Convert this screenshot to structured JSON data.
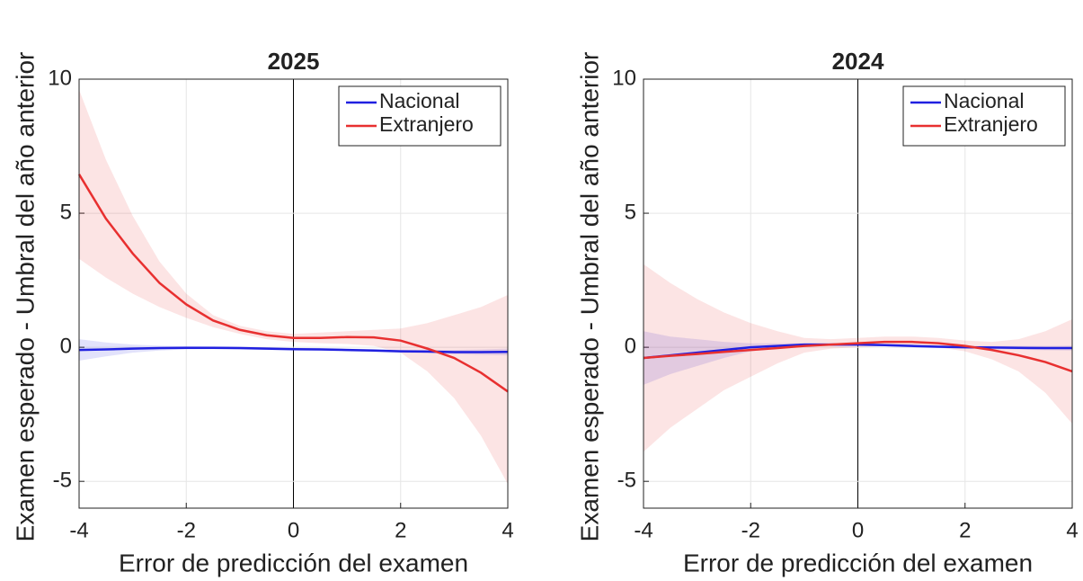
{
  "chart_data": [
    {
      "type": "line",
      "title": "2025",
      "x_label": "Error de predicción del examen",
      "y_label": "Examen esperado - Umbral del año anterior",
      "x": [
        -4,
        -3.5,
        -3,
        -2.5,
        -2,
        -1.5,
        -1,
        -0.5,
        0,
        0.5,
        1,
        1.5,
        2,
        2.5,
        3,
        3.5,
        4
      ],
      "xlim": [
        -4,
        4
      ],
      "xticks": [
        -4,
        -2,
        0,
        2,
        4
      ],
      "ylim": [
        -6,
        10
      ],
      "yticks": [
        -5,
        0,
        5,
        10
      ],
      "grid": true,
      "legend": "upper right",
      "series": [
        {
          "name": "Nacional",
          "color": "#2020e0",
          "values": [
            -0.1,
            -0.08,
            -0.05,
            -0.03,
            -0.02,
            -0.02,
            -0.03,
            -0.05,
            -0.07,
            -0.08,
            -0.1,
            -0.12,
            -0.15,
            -0.16,
            -0.18,
            -0.18,
            -0.17
          ],
          "upper": [
            0.3,
            0.18,
            0.1,
            0.06,
            0.04,
            0.03,
            0.02,
            0.0,
            -0.02,
            -0.03,
            -0.05,
            -0.07,
            -0.1,
            -0.1,
            -0.1,
            -0.08,
            -0.05
          ],
          "lower": [
            -0.5,
            -0.34,
            -0.2,
            -0.12,
            -0.08,
            -0.07,
            -0.08,
            -0.1,
            -0.12,
            -0.13,
            -0.15,
            -0.17,
            -0.2,
            -0.22,
            -0.26,
            -0.28,
            -0.3
          ]
        },
        {
          "name": "Extranjero",
          "color": "#e83030",
          "values": [
            6.45,
            4.8,
            3.5,
            2.4,
            1.6,
            1.0,
            0.65,
            0.45,
            0.35,
            0.35,
            0.38,
            0.37,
            0.25,
            -0.05,
            -0.4,
            -0.95,
            -1.65
          ],
          "upper": [
            9.6,
            7.0,
            4.9,
            3.2,
            2.0,
            1.2,
            0.8,
            0.6,
            0.5,
            0.55,
            0.6,
            0.65,
            0.7,
            0.9,
            1.2,
            1.5,
            1.95
          ],
          "lower": [
            3.3,
            2.6,
            2.0,
            1.5,
            1.1,
            0.75,
            0.5,
            0.3,
            0.2,
            0.15,
            0.12,
            0.05,
            -0.2,
            -0.9,
            -1.9,
            -3.3,
            -5.1
          ]
        }
      ]
    },
    {
      "type": "line",
      "title": "2024",
      "x_label": "Error de predicción del examen",
      "y_label": "Examen esperado - Umbral del año anterior",
      "x": [
        -4,
        -3.5,
        -3,
        -2.5,
        -2,
        -1.5,
        -1,
        -0.5,
        0,
        0.5,
        1,
        1.5,
        2,
        2.5,
        3,
        3.5,
        4
      ],
      "xlim": [
        -4,
        4
      ],
      "xticks": [
        -4,
        -2,
        0,
        2,
        4
      ],
      "ylim": [
        -6,
        10
      ],
      "yticks": [
        -5,
        0,
        5,
        10
      ],
      "grid": true,
      "legend": "upper right",
      "series": [
        {
          "name": "Nacional",
          "color": "#2020e0",
          "values": [
            -0.4,
            -0.3,
            -0.2,
            -0.1,
            0.0,
            0.05,
            0.1,
            0.1,
            0.1,
            0.08,
            0.05,
            0.02,
            0.0,
            -0.01,
            -0.02,
            -0.03,
            -0.03
          ],
          "upper": [
            0.6,
            0.4,
            0.3,
            0.2,
            0.15,
            0.15,
            0.15,
            0.15,
            0.15,
            0.12,
            0.1,
            0.07,
            0.05,
            0.05,
            0.05,
            0.05,
            0.06
          ],
          "lower": [
            -1.4,
            -1.0,
            -0.7,
            -0.4,
            -0.15,
            -0.05,
            0.05,
            0.05,
            0.05,
            0.04,
            0.0,
            -0.03,
            -0.05,
            -0.07,
            -0.09,
            -0.11,
            -0.12
          ]
        },
        {
          "name": "Extranjero",
          "color": "#e83030",
          "values": [
            -0.4,
            -0.32,
            -0.25,
            -0.17,
            -0.1,
            -0.03,
            0.05,
            0.1,
            0.15,
            0.2,
            0.2,
            0.15,
            0.05,
            -0.1,
            -0.3,
            -0.55,
            -0.9
          ],
          "upper": [
            3.1,
            2.4,
            1.8,
            1.3,
            0.9,
            0.6,
            0.35,
            0.3,
            0.35,
            0.4,
            0.4,
            0.35,
            0.25,
            0.2,
            0.3,
            0.6,
            1.05
          ],
          "lower": [
            -3.9,
            -3.0,
            -2.3,
            -1.6,
            -1.1,
            -0.6,
            -0.2,
            -0.05,
            0.0,
            0.05,
            0.05,
            0.0,
            -0.15,
            -0.45,
            -0.9,
            -1.7,
            -2.85
          ]
        }
      ]
    }
  ]
}
